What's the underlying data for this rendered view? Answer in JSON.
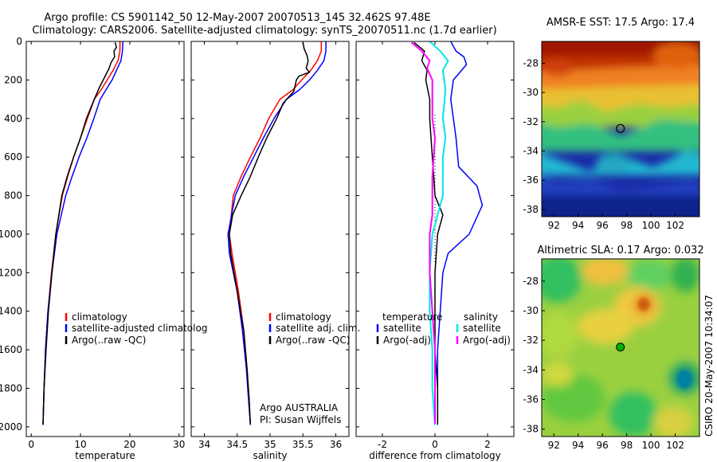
{
  "figure": {
    "title_line1": "Argo profile: CS 5901142_50 12-May-2007 20070513_145 32.462S 97.48E",
    "title_line2": "Climatology: CARS2006. Satellite-adjusted climatology: synTS_20070511.nc (1.7d earlier)",
    "credit": "CSIRO 20-May-2007 10:34:07"
  },
  "colors": {
    "red": "#ff0000",
    "blue": "#0000ff",
    "black": "#000000",
    "cyan": "#00e5e5",
    "magenta": "#ff00ff",
    "green": "#00b000"
  },
  "chart_data": [
    {
      "type": "line",
      "id": "temperature",
      "xlabel": "temperature",
      "xlim": [
        -1,
        31
      ],
      "xticks": [
        0,
        10,
        20,
        30
      ],
      "ylim": [
        0,
        2050
      ],
      "yticks": [
        0,
        200,
        400,
        600,
        800,
        1000,
        1200,
        1400,
        1600,
        1800,
        2000
      ],
      "y_reversed": true,
      "legend": [
        "climatology",
        "satellite-adjusted climatolog",
        "Argo(..raw -QC)"
      ],
      "series": [
        {
          "name": "climatology",
          "color": "red",
          "x": [
            18.0,
            18.0,
            17.6,
            16.6,
            15.4,
            14.2,
            12.8,
            11.4,
            10.0,
            8.6,
            7.4,
            6.3,
            5.0,
            4.1,
            3.4,
            2.9,
            2.6,
            2.4
          ],
          "y": [
            0,
            50,
            100,
            150,
            200,
            250,
            300,
            400,
            500,
            600,
            700,
            800,
            1000,
            1200,
            1400,
            1600,
            1800,
            1990
          ]
        },
        {
          "name": "satellite-adjusted climatolog",
          "color": "blue",
          "x": [
            18.6,
            18.5,
            18.2,
            17.3,
            16.4,
            15.2,
            14.0,
            12.7,
            11.3,
            9.7,
            8.3,
            7.0,
            5.2,
            4.2,
            3.4,
            2.9,
            2.6,
            2.4
          ],
          "y": [
            0,
            50,
            100,
            150,
            200,
            250,
            300,
            400,
            500,
            600,
            700,
            800,
            1000,
            1200,
            1400,
            1600,
            1800,
            1990
          ]
        },
        {
          "name": "Argo(..raw -QC)",
          "color": "black",
          "x": [
            17.0,
            17.3,
            16.8,
            16.9,
            16.2,
            15.8,
            15.0,
            13.8,
            12.8,
            11.2,
            10.0,
            8.6,
            7.3,
            6.2,
            5.0,
            4.2,
            3.5,
            3.0,
            2.6,
            2.4
          ],
          "y": [
            5,
            30,
            50,
            80,
            110,
            140,
            180,
            240,
            300,
            400,
            500,
            600,
            700,
            800,
            1000,
            1200,
            1400,
            1600,
            1800,
            1985
          ]
        }
      ]
    },
    {
      "type": "line",
      "id": "salinity",
      "xlabel": "salinity",
      "xlim": [
        33.8,
        36.2
      ],
      "xticks": [
        34,
        34.5,
        35,
        35.5,
        36
      ],
      "ylim": [
        0,
        2050
      ],
      "y_reversed": true,
      "legend": [
        "climatology",
        "satellite adj. clim.",
        "Argo(..raw -QC)"
      ],
      "annotation": [
        "Argo AUSTRALIA",
        "PI: Susan Wijffels"
      ],
      "series": [
        {
          "name": "climatology",
          "color": "red",
          "x": [
            35.78,
            35.78,
            35.72,
            35.62,
            35.48,
            35.35,
            35.15,
            34.98,
            34.85,
            34.7,
            34.56,
            34.44,
            34.38,
            34.42,
            34.52,
            34.6,
            34.65,
            34.68,
            34.7
          ],
          "y": [
            0,
            50,
            100,
            150,
            200,
            250,
            300,
            400,
            500,
            600,
            700,
            800,
            1000,
            1100,
            1300,
            1500,
            1700,
            1850,
            1990
          ]
        },
        {
          "name": "satellite adj. clim.",
          "color": "blue",
          "x": [
            35.85,
            35.85,
            35.82,
            35.72,
            35.6,
            35.45,
            35.25,
            35.06,
            34.9,
            34.75,
            34.6,
            34.47,
            34.36,
            34.38,
            34.5,
            34.58,
            34.64,
            34.67,
            34.7
          ],
          "y": [
            0,
            50,
            100,
            150,
            200,
            250,
            300,
            400,
            500,
            600,
            700,
            800,
            1000,
            1100,
            1300,
            1500,
            1700,
            1850,
            1990
          ]
        },
        {
          "name": "Argo(..raw -QC)",
          "color": "black",
          "x": [
            35.5,
            35.52,
            35.56,
            35.58,
            35.55,
            35.6,
            35.44,
            35.4,
            35.36,
            35.2,
            35.1,
            34.95,
            34.82,
            34.7,
            34.56,
            34.43,
            34.38,
            34.4,
            34.5,
            34.6,
            34.65,
            34.68,
            34.7
          ],
          "y": [
            5,
            40,
            70,
            100,
            140,
            160,
            180,
            200,
            260,
            320,
            400,
            500,
            600,
            700,
            800,
            900,
            1000,
            1100,
            1300,
            1500,
            1700,
            1850,
            1985
          ]
        }
      ]
    },
    {
      "type": "line",
      "id": "difference",
      "xlabel": "difference from climatology",
      "xlim": [
        -3,
        3
      ],
      "xticks": [
        -2,
        0,
        2
      ],
      "ylim": [
        0,
        2050
      ],
      "y_reversed": true,
      "legend_headers": [
        "temperature",
        "salinity"
      ],
      "legend": [
        "satellite",
        "Argo(-adj)",
        "satellite",
        "Argo(-adj)"
      ],
      "series": [
        {
          "name": "temperature satellite",
          "color": "blue",
          "x": [
            0.6,
            0.8,
            1.1,
            1.2,
            0.7,
            0.6,
            0.7,
            0.8,
            0.9,
            1.6,
            1.8,
            1.3,
            0.5,
            0.3,
            0.2,
            0.1,
            0.1,
            0.1
          ],
          "y": [
            0,
            50,
            80,
            120,
            200,
            300,
            400,
            500,
            650,
            750,
            850,
            1000,
            1100,
            1200,
            1400,
            1600,
            1800,
            1990
          ]
        },
        {
          "name": "temperature Argo(-adj)",
          "color": "black",
          "x": [
            -0.8,
            -0.4,
            -0.5,
            -0.3,
            -0.35,
            -0.2,
            -0.2,
            -0.15,
            -0.1,
            -0.05,
            0.0,
            0.3,
            0.1,
            0.0,
            0.0,
            0.0,
            0.1,
            0.1
          ],
          "y": [
            5,
            50,
            100,
            150,
            200,
            300,
            400,
            500,
            600,
            700,
            800,
            900,
            1000,
            1200,
            1400,
            1600,
            1800,
            1985
          ]
        },
        {
          "name": "salinity satellite",
          "color": "cyan",
          "x": [
            -0.2,
            0.2,
            0.5,
            0.3,
            0.4,
            0.3,
            0.4,
            0.3,
            0.3,
            0.1,
            -0.1,
            -0.2,
            -0.2,
            -0.1,
            -0.1,
            -0.05,
            0.0
          ],
          "y": [
            0,
            50,
            100,
            150,
            250,
            400,
            500,
            600,
            800,
            900,
            1000,
            1200,
            1400,
            1600,
            1800,
            1900,
            1990
          ]
        },
        {
          "name": "salinity Argo(-adj)",
          "color": "magenta",
          "x": [
            -0.9,
            -0.5,
            -0.2,
            -0.3,
            -0.1,
            -0.1,
            -0.1,
            0.0,
            -0.1,
            -0.1,
            -0.2,
            -0.2,
            -0.1,
            0.0,
            0.0,
            0.0,
            0.0
          ],
          "y": [
            5,
            50,
            100,
            140,
            200,
            300,
            400,
            500,
            700,
            900,
            1000,
            1200,
            1400,
            1600,
            1800,
            1900,
            1985
          ]
        }
      ]
    },
    {
      "type": "heatmap",
      "id": "sst-map",
      "title": "AMSR-E SST: 17.5 Argo: 17.4",
      "xlim": [
        91,
        104
      ],
      "ylim": [
        -38.5,
        -26.5
      ],
      "xticks": [
        92,
        94,
        96,
        98,
        100,
        102
      ],
      "yticks": [
        -28,
        -30,
        -32,
        -34,
        -36,
        -38
      ],
      "marker": {
        "lon": 97.48,
        "lat": -32.462
      }
    },
    {
      "type": "heatmap",
      "id": "sla-map",
      "title": "Altimetric SLA: 0.17 Argo: 0.032",
      "xlim": [
        91,
        104
      ],
      "ylim": [
        -38.5,
        -26.5
      ],
      "xticks": [
        92,
        94,
        96,
        98,
        100,
        102
      ],
      "yticks": [
        -28,
        -30,
        -32,
        -34,
        -36,
        -38
      ],
      "marker": {
        "lon": 97.48,
        "lat": -32.462
      }
    }
  ]
}
